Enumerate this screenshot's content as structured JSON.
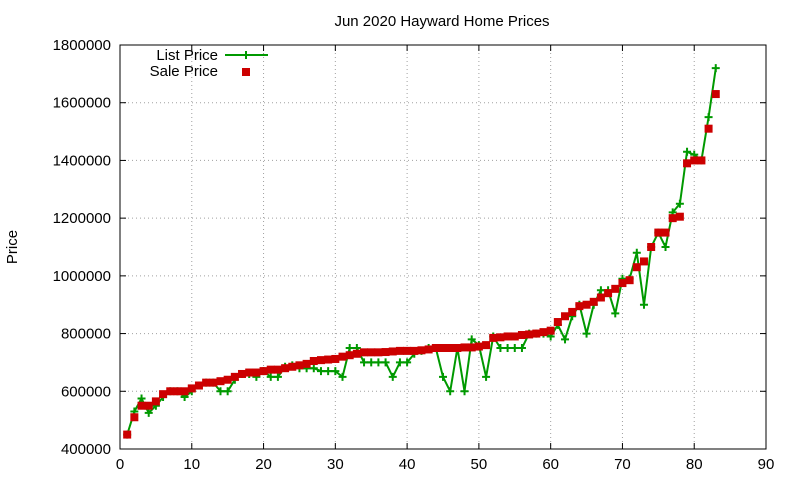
{
  "chart_data": {
    "type": "line",
    "title": "Jun 2020 Hayward Home Prices",
    "xlabel": "",
    "ylabel": "Price",
    "xlim": [
      0,
      90
    ],
    "ylim": [
      400000,
      1800000
    ],
    "x_ticks": [
      0,
      10,
      20,
      30,
      40,
      50,
      60,
      70,
      80,
      90
    ],
    "y_ticks": [
      400000,
      600000,
      800000,
      1000000,
      1200000,
      1400000,
      1600000,
      1800000
    ],
    "x_tick_labels": [
      "0",
      "10",
      "20",
      "30",
      "40",
      "50",
      "60",
      "70",
      "80",
      "90"
    ],
    "y_tick_labels": [
      "400000",
      "600000",
      "800000",
      "1000000",
      "1200000",
      "1400000",
      "1600000",
      "1800000"
    ],
    "grid": true,
    "legend_position": "top-left",
    "series": [
      {
        "name": "List Price",
        "style": "line-with-plus-markers",
        "color": "#009900",
        "x": [
          1,
          2,
          3,
          4,
          5,
          6,
          7,
          8,
          9,
          10,
          11,
          12,
          13,
          14,
          15,
          16,
          17,
          18,
          19,
          20,
          21,
          22,
          23,
          24,
          25,
          26,
          27,
          28,
          29,
          30,
          31,
          32,
          33,
          34,
          35,
          36,
          37,
          38,
          39,
          40,
          41,
          42,
          43,
          44,
          45,
          46,
          47,
          48,
          49,
          50,
          51,
          52,
          53,
          54,
          55,
          56,
          57,
          58,
          59,
          60,
          61,
          62,
          63,
          64,
          65,
          66,
          67,
          68,
          69,
          70,
          71,
          72,
          73,
          74,
          75,
          76,
          77,
          78,
          79,
          80,
          81,
          82,
          83
        ],
        "values": [
          450000,
          530000,
          575000,
          525000,
          550000,
          580000,
          600000,
          600000,
          580000,
          600000,
          620000,
          630000,
          630000,
          600000,
          600000,
          640000,
          660000,
          660000,
          650000,
          670000,
          650000,
          650000,
          685000,
          690000,
          680000,
          680000,
          680000,
          670000,
          670000,
          670000,
          650000,
          750000,
          750000,
          700000,
          700000,
          700000,
          700000,
          650000,
          700000,
          700000,
          730000,
          740000,
          750000,
          750000,
          650000,
          600000,
          750000,
          600000,
          780000,
          760000,
          650000,
          790000,
          750000,
          750000,
          750000,
          750000,
          800000,
          800000,
          800000,
          790000,
          830000,
          780000,
          860000,
          900000,
          800000,
          900000,
          950000,
          950000,
          870000,
          990000,
          990000,
          1080000,
          900000,
          1100000,
          1150000,
          1100000,
          1220000,
          1250000,
          1430000,
          1420000,
          1400000,
          1550000,
          1720000
        ]
      },
      {
        "name": "Sale Price",
        "style": "square-markers",
        "color": "#cc0000",
        "x": [
          1,
          2,
          3,
          4,
          5,
          6,
          7,
          8,
          9,
          10,
          11,
          12,
          13,
          14,
          15,
          16,
          17,
          18,
          19,
          20,
          21,
          22,
          23,
          24,
          25,
          26,
          27,
          28,
          29,
          30,
          31,
          32,
          33,
          34,
          35,
          36,
          37,
          38,
          39,
          40,
          41,
          42,
          43,
          44,
          45,
          46,
          47,
          48,
          49,
          50,
          51,
          52,
          53,
          54,
          55,
          56,
          57,
          58,
          59,
          60,
          61,
          62,
          63,
          64,
          65,
          66,
          67,
          68,
          69,
          70,
          71,
          72,
          73,
          74,
          75,
          76,
          77,
          78,
          79,
          80,
          81,
          82,
          83
        ],
        "values": [
          450000,
          510000,
          550000,
          550000,
          565000,
          590000,
          600000,
          600000,
          600000,
          610000,
          620000,
          630000,
          630000,
          635000,
          640000,
          650000,
          660000,
          665000,
          665000,
          670000,
          675000,
          675000,
          680000,
          685000,
          690000,
          695000,
          705000,
          708000,
          710000,
          712000,
          720000,
          725000,
          730000,
          735000,
          735000,
          735000,
          736000,
          738000,
          740000,
          740000,
          740000,
          742000,
          745000,
          750000,
          750000,
          750000,
          750000,
          752000,
          752000,
          755000,
          760000,
          785000,
          787000,
          790000,
          790000,
          795000,
          797000,
          800000,
          805000,
          810000,
          840000,
          860000,
          875000,
          895000,
          900000,
          910000,
          925000,
          940000,
          955000,
          975000,
          985000,
          1030000,
          1050000,
          1100000,
          1150000,
          1150000,
          1200000,
          1205000,
          1390000,
          1400000,
          1400000,
          1510000,
          1630000
        ]
      }
    ]
  }
}
